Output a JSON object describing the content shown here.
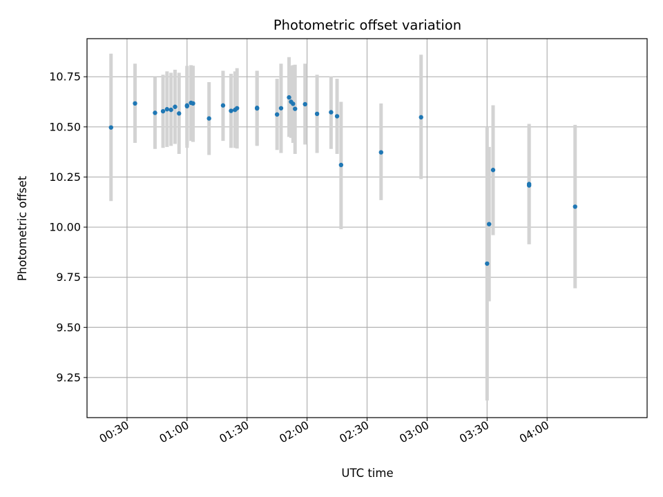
{
  "chart_data": {
    "type": "scatter",
    "title": "Photometric offset variation",
    "xlabel": "UTC time",
    "ylabel": "Photometric offset",
    "x_unit": "HH:MM",
    "xlim": [
      "00:10",
      "04:50"
    ],
    "ylim": [
      9.05,
      10.94
    ],
    "xticks": [
      "00:30",
      "01:00",
      "01:30",
      "02:00",
      "02:30",
      "03:00",
      "03:30",
      "04:00"
    ],
    "yticks": [
      9.25,
      9.5,
      9.75,
      10.0,
      10.25,
      10.5,
      10.75
    ],
    "ytick_labels": [
      "9.25",
      "9.50",
      "9.75",
      "10.00",
      "10.25",
      "10.50",
      "10.75"
    ],
    "grid": true,
    "point_color": "#1f77b4",
    "errorbar_color": "#d3d3d3",
    "points": [
      {
        "x": "00:22",
        "y": 10.497,
        "lo": 10.13,
        "hi": 10.865
      },
      {
        "x": "00:34",
        "y": 10.617,
        "lo": 10.42,
        "hi": 10.815
      },
      {
        "x": "00:44",
        "y": 10.57,
        "lo": 10.39,
        "hi": 10.75
      },
      {
        "x": "00:48",
        "y": 10.578,
        "lo": 10.395,
        "hi": 10.76
      },
      {
        "x": "00:50",
        "y": 10.588,
        "lo": 10.4,
        "hi": 10.777
      },
      {
        "x": "00:52",
        "y": 10.585,
        "lo": 10.405,
        "hi": 10.77
      },
      {
        "x": "00:54",
        "y": 10.6,
        "lo": 10.415,
        "hi": 10.785
      },
      {
        "x": "00:56",
        "y": 10.567,
        "lo": 10.365,
        "hi": 10.77
      },
      {
        "x": "01:00",
        "y": 10.607,
        "lo": 10.41,
        "hi": 10.805
      },
      {
        "x": "01:00",
        "y": 10.603,
        "lo": 10.395,
        "hi": 10.8
      },
      {
        "x": "01:02",
        "y": 10.62,
        "lo": 10.43,
        "hi": 10.808
      },
      {
        "x": "01:03",
        "y": 10.617,
        "lo": 10.425,
        "hi": 10.805
      },
      {
        "x": "01:11",
        "y": 10.542,
        "lo": 10.36,
        "hi": 10.723
      },
      {
        "x": "01:18",
        "y": 10.607,
        "lo": 10.43,
        "hi": 10.78
      },
      {
        "x": "01:22",
        "y": 10.58,
        "lo": 10.395,
        "hi": 10.765
      },
      {
        "x": "01:24",
        "y": 10.585,
        "lo": 10.395,
        "hi": 10.777
      },
      {
        "x": "01:25",
        "y": 10.593,
        "lo": 10.392,
        "hi": 10.793
      },
      {
        "x": "01:35",
        "y": 10.595,
        "lo": 10.41,
        "hi": 10.78
      },
      {
        "x": "01:35",
        "y": 10.592,
        "lo": 10.405,
        "hi": 10.777
      },
      {
        "x": "01:45",
        "y": 10.562,
        "lo": 10.385,
        "hi": 10.74
      },
      {
        "x": "01:47",
        "y": 10.593,
        "lo": 10.37,
        "hi": 10.815
      },
      {
        "x": "01:51",
        "y": 10.647,
        "lo": 10.45,
        "hi": 10.848
      },
      {
        "x": "01:52",
        "y": 10.625,
        "lo": 10.445,
        "hi": 10.805
      },
      {
        "x": "01:53",
        "y": 10.615,
        "lo": 10.42,
        "hi": 10.808
      },
      {
        "x": "01:54",
        "y": 10.59,
        "lo": 10.365,
        "hi": 10.81
      },
      {
        "x": "01:59",
        "y": 10.613,
        "lo": 10.412,
        "hi": 10.815
      },
      {
        "x": "02:05",
        "y": 10.565,
        "lo": 10.37,
        "hi": 10.76
      },
      {
        "x": "02:12",
        "y": 10.573,
        "lo": 10.39,
        "hi": 10.752
      },
      {
        "x": "02:15",
        "y": 10.553,
        "lo": 10.365,
        "hi": 10.74
      },
      {
        "x": "02:17",
        "y": 10.31,
        "lo": 9.99,
        "hi": 10.625
      },
      {
        "x": "02:37",
        "y": 10.373,
        "lo": 10.135,
        "hi": 10.617
      },
      {
        "x": "02:57",
        "y": 10.548,
        "lo": 10.24,
        "hi": 10.86
      },
      {
        "x": "03:30",
        "y": 9.818,
        "lo": 9.135,
        "hi": 10.5
      },
      {
        "x": "03:31",
        "y": 10.015,
        "lo": 9.63,
        "hi": 10.4
      },
      {
        "x": "03:33",
        "y": 10.285,
        "lo": 9.96,
        "hi": 10.608
      },
      {
        "x": "03:51",
        "y": 10.215,
        "lo": 9.915,
        "hi": 10.515
      },
      {
        "x": "03:51",
        "y": 10.208,
        "lo": 9.915,
        "hi": 10.508
      },
      {
        "x": "04:14",
        "y": 10.102,
        "lo": 9.695,
        "hi": 10.51
      }
    ]
  }
}
